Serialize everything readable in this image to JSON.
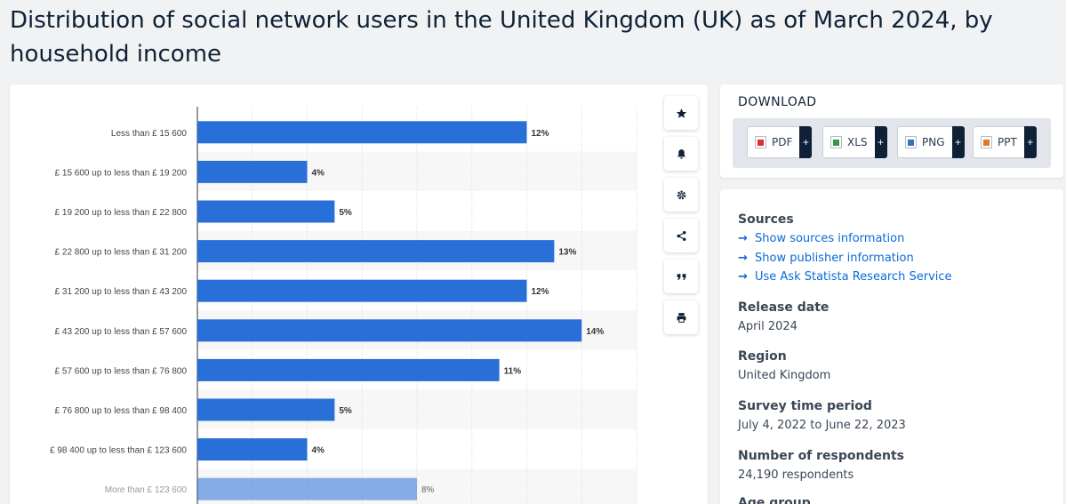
{
  "page": {
    "title": "Distribution of social network users in the United Kingdom (UK) as of March 2024, by household income"
  },
  "chart_data": {
    "type": "bar",
    "orientation": "horizontal",
    "categories": [
      "Less than £ 15 600",
      "£ 15 600 up to less than £ 19 200",
      "£ 19 200 up to less than £ 22 800",
      "£ 22 800 up to less than £ 31 200",
      "£ 31 200 up to less than £ 43 200",
      "£ 43 200 up to less than £ 57 600",
      "£ 57 600 up to less than £ 76 800",
      "£ 76 800 up to less than £ 98 400",
      "£ 98 400 up to less than £ 123 600",
      "More than £ 123 600"
    ],
    "values": [
      12,
      4,
      5,
      13,
      12,
      14,
      11,
      5,
      4,
      8
    ],
    "value_labels": [
      "12%",
      "4%",
      "5%",
      "13%",
      "12%",
      "14%",
      "11%",
      "5%",
      "4%",
      "8%"
    ],
    "xlim": [
      0,
      16
    ],
    "grid": true,
    "bar_color": "#2870d8"
  },
  "tools": [
    {
      "name": "star-icon",
      "label": "favorite"
    },
    {
      "name": "bell-icon",
      "label": "notification"
    },
    {
      "name": "gear-icon",
      "label": "settings"
    },
    {
      "name": "share-icon",
      "label": "share"
    },
    {
      "name": "quote-icon",
      "label": "cite"
    },
    {
      "name": "print-icon",
      "label": "print"
    }
  ],
  "download": {
    "title": "DOWNLOAD",
    "buttons": [
      {
        "label": "PDF",
        "plus": "+",
        "icon_color": "#d8332f"
      },
      {
        "label": "XLS",
        "plus": "+",
        "icon_color": "#2e9a44"
      },
      {
        "label": "PNG",
        "plus": "+",
        "icon_color": "#3b6fb8"
      },
      {
        "label": "PPT",
        "plus": "+",
        "icon_color": "#e07a28"
      }
    ]
  },
  "info": {
    "sources_heading": "Sources",
    "links": [
      "Show sources information",
      "Show publisher information",
      "Use Ask Statista Research Service"
    ],
    "release_heading": "Release date",
    "release_value": "April 2024",
    "region_heading": "Region",
    "region_value": "United Kingdom",
    "period_heading": "Survey time period",
    "period_value": "July 4, 2022 to June 22, 2023",
    "respondents_heading": "Number of respondents",
    "respondents_value": "24,190 respondents",
    "age_heading": "Age group"
  }
}
